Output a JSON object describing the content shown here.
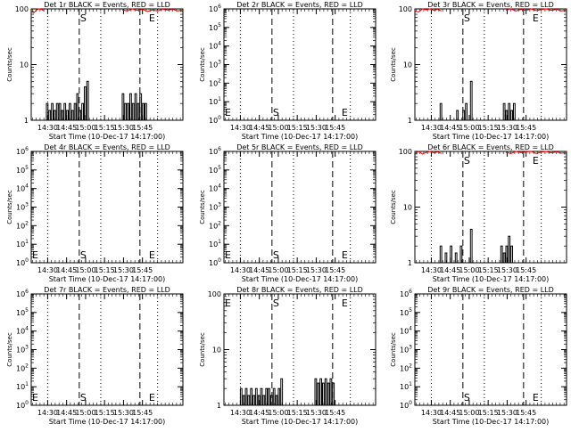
{
  "figure": {
    "x_tick_labels": [
      "14:30",
      "14:45",
      "15:00",
      "15:15",
      "15:30",
      "15:45"
    ],
    "xlabel": "Start Time (10-Dec-17 14:17:00)",
    "ylabel": "Counts/sec",
    "marker_start": "S",
    "marker_end": "E"
  },
  "chart_data": [
    {
      "type": "line",
      "title": "Det 1r BLACK = Events, RED = LLD",
      "yscale": "log",
      "ylim": [
        1,
        100
      ],
      "y_tick_labels": [
        "1",
        "10",
        "100"
      ],
      "x_minutes": [
        0,
        120
      ],
      "red_segments": [
        [
          [
            0,
            90
          ],
          [
            2,
            85
          ],
          [
            4,
            95
          ],
          [
            6,
            100
          ],
          [
            8,
            98
          ],
          [
            10,
            92
          ]
        ],
        [
          [
            72,
            96
          ],
          [
            76,
            92
          ],
          [
            80,
            100
          ],
          [
            84,
            94
          ],
          [
            88,
            98
          ],
          [
            92,
            90
          ],
          [
            96,
            96
          ],
          [
            100,
            92
          ],
          [
            104,
            99
          ],
          [
            108,
            95
          ],
          [
            112,
            98
          ],
          [
            116,
            92
          ],
          [
            120,
            96
          ]
        ]
      ],
      "black_bars": [
        [
          12,
          2
        ],
        [
          14,
          1.5
        ],
        [
          16,
          2
        ],
        [
          18,
          1.5
        ],
        [
          20,
          2
        ],
        [
          22,
          2
        ],
        [
          24,
          1.5
        ],
        [
          26,
          2
        ],
        [
          28,
          1.5
        ],
        [
          30,
          2
        ],
        [
          32,
          1.5
        ],
        [
          34,
          2
        ],
        [
          36,
          3
        ],
        [
          38,
          1.5
        ],
        [
          40,
          2
        ],
        [
          42,
          4
        ],
        [
          44,
          5
        ],
        [
          72,
          3
        ],
        [
          74,
          2
        ],
        [
          76,
          2
        ],
        [
          78,
          3
        ],
        [
          80,
          2
        ],
        [
          82,
          3
        ],
        [
          84,
          2
        ],
        [
          86,
          3
        ],
        [
          88,
          2
        ],
        [
          90,
          2
        ]
      ]
    },
    {
      "type": "line",
      "title": "Det 2r BLACK = Events, RED = LLD",
      "yscale": "log",
      "ylim": [
        1,
        1000000
      ],
      "y_tick_labels": [
        "10^0",
        "10^1",
        "10^2",
        "10^3",
        "10^4",
        "10^5",
        "10^6"
      ],
      "x_minutes": [
        0,
        120
      ],
      "red_segments": [],
      "black_bars": []
    },
    {
      "type": "line",
      "title": "Det 3r BLACK = Events, RED = LLD",
      "yscale": "log",
      "ylim": [
        1,
        100
      ],
      "y_tick_labels": [
        "1",
        "10",
        "100"
      ],
      "x_minutes": [
        0,
        120
      ],
      "red_segments": [
        [
          [
            0,
            92
          ],
          [
            3,
            88
          ],
          [
            6,
            100
          ],
          [
            9,
            96
          ],
          [
            12,
            100
          ],
          [
            15,
            94
          ],
          [
            18,
            98
          ],
          [
            21,
            92
          ]
        ],
        [
          [
            72,
            95
          ],
          [
            76,
            100
          ],
          [
            80,
            92
          ],
          [
            84,
            98
          ],
          [
            88,
            94
          ],
          [
            92,
            100
          ],
          [
            96,
            93
          ],
          [
            100,
            97
          ],
          [
            104,
            100
          ],
          [
            108,
            94
          ],
          [
            112,
            98
          ],
          [
            116,
            92
          ],
          [
            120,
            96
          ]
        ]
      ],
      "black_bars": [
        [
          20,
          2
        ],
        [
          33,
          1.5
        ],
        [
          38,
          1.5
        ],
        [
          40,
          2
        ],
        [
          44,
          5
        ],
        [
          70,
          2
        ],
        [
          72,
          1.5
        ],
        [
          74,
          2
        ],
        [
          76,
          1.5
        ],
        [
          78,
          2
        ]
      ]
    },
    {
      "type": "line",
      "title": "Det 4r BLACK = Events, RED = LLD",
      "yscale": "log",
      "ylim": [
        1,
        1000000
      ],
      "y_tick_labels": [
        "10^0",
        "10^1",
        "10^2",
        "10^3",
        "10^4",
        "10^5",
        "10^6"
      ],
      "x_minutes": [
        0,
        120
      ],
      "red_segments": [],
      "black_bars": []
    },
    {
      "type": "line",
      "title": "Det 5r BLACK = Events, RED = LLD",
      "yscale": "log",
      "ylim": [
        1,
        1000000
      ],
      "y_tick_labels": [
        "10^0",
        "10^1",
        "10^2",
        "10^3",
        "10^4",
        "10^5",
        "10^6"
      ],
      "x_minutes": [
        0,
        120
      ],
      "red_segments": [],
      "black_bars": []
    },
    {
      "type": "line",
      "title": "Det 6r BLACK = Events, RED = LLD",
      "yscale": "log",
      "ylim": [
        1,
        100
      ],
      "y_tick_labels": [
        "1",
        "10",
        "100"
      ],
      "x_minutes": [
        0,
        120
      ],
      "red_segments": [
        [
          [
            0,
            92
          ],
          [
            3,
            100
          ],
          [
            6,
            90
          ],
          [
            9,
            96
          ],
          [
            12,
            100
          ],
          [
            15,
            94
          ],
          [
            18,
            98
          ],
          [
            21,
            92
          ]
        ],
        [
          [
            72,
            96
          ],
          [
            76,
            92
          ],
          [
            80,
            100
          ],
          [
            84,
            95
          ],
          [
            88,
            98
          ],
          [
            92,
            100
          ],
          [
            96,
            92
          ],
          [
            100,
            97
          ],
          [
            104,
            100
          ],
          [
            108,
            94
          ],
          [
            112,
            98
          ],
          [
            116,
            93
          ],
          [
            120,
            96
          ]
        ]
      ],
      "black_bars": [
        [
          20,
          2
        ],
        [
          24,
          1.5
        ],
        [
          28,
          2
        ],
        [
          32,
          1.5
        ],
        [
          36,
          2
        ],
        [
          44,
          4
        ],
        [
          68,
          2
        ],
        [
          70,
          1.5
        ],
        [
          72,
          2
        ],
        [
          74,
          3
        ],
        [
          76,
          2
        ]
      ]
    },
    {
      "type": "line",
      "title": "Det 7r BLACK = Events, RED = LLD",
      "yscale": "log",
      "ylim": [
        1,
        1000000
      ],
      "y_tick_labels": [
        "10^0",
        "10^1",
        "10^2",
        "10^3",
        "10^4",
        "10^5",
        "10^6"
      ],
      "x_minutes": [
        0,
        120
      ],
      "red_segments": [],
      "black_bars": []
    },
    {
      "type": "line",
      "title": "Det 8r BLACK = Events, RED = LLD",
      "yscale": "log",
      "ylim": [
        1,
        100
      ],
      "y_tick_labels": [
        "1",
        "10",
        "100"
      ],
      "x_minutes": [
        0,
        120
      ],
      "red_segments": [],
      "black_bars": [
        [
          13,
          2
        ],
        [
          15,
          1.5
        ],
        [
          17,
          2
        ],
        [
          19,
          1.5
        ],
        [
          21,
          2
        ],
        [
          23,
          1.5
        ],
        [
          25,
          2
        ],
        [
          27,
          1.5
        ],
        [
          29,
          2
        ],
        [
          31,
          1.5
        ],
        [
          33,
          2
        ],
        [
          35,
          2
        ],
        [
          37,
          1.5
        ],
        [
          39,
          2
        ],
        [
          41,
          1.5
        ],
        [
          43,
          2
        ],
        [
          45,
          3
        ],
        [
          72,
          3
        ],
        [
          74,
          2.5
        ],
        [
          76,
          3
        ],
        [
          78,
          2.5
        ],
        [
          80,
          3
        ],
        [
          82,
          2.5
        ],
        [
          84,
          3
        ],
        [
          86,
          2.5
        ]
      ]
    },
    {
      "type": "line",
      "title": "Det 9r BLACK = Events, RED = LLD",
      "yscale": "log",
      "ylim": [
        1,
        1000000
      ],
      "y_tick_labels": [
        "10^0",
        "10^1",
        "10^2",
        "10^3",
        "10^4",
        "10^5",
        "10^6"
      ],
      "x_minutes": [
        0,
        120
      ],
      "red_segments": [],
      "black_bars": []
    }
  ]
}
